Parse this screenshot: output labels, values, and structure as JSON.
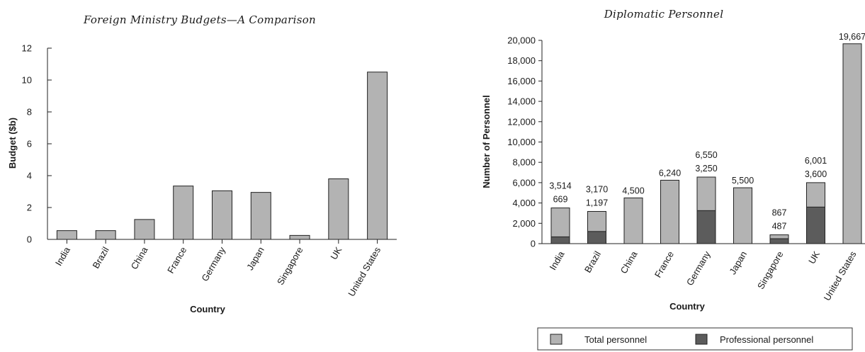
{
  "chart_data": [
    {
      "type": "bar",
      "title": "Foreign Ministry Budgets—A Comparison",
      "xlabel": "Country",
      "ylabel": "Budget ($b)",
      "ylim": [
        0,
        12
      ],
      "yticks": [
        "0",
        "2",
        "4",
        "6",
        "8",
        "10",
        "12"
      ],
      "categories": [
        "India",
        "Brazil",
        "China",
        "France",
        "Germany",
        "Japan",
        "Singapore",
        "UK",
        "United States"
      ],
      "values": [
        0.55,
        0.55,
        1.25,
        3.35,
        3.05,
        2.95,
        0.25,
        3.8,
        10.5
      ],
      "colors": {
        "bar": "#b3b3b3",
        "stroke": "#222222"
      }
    },
    {
      "type": "bar",
      "title": "Diplomatic Personnel",
      "xlabel": "Country",
      "ylabel": "Number of Personnel",
      "ylim": [
        0,
        20000
      ],
      "yticks": [
        "0",
        "2,000",
        "4,000",
        "6,000",
        "8,000",
        "10,000",
        "12,000",
        "14,000",
        "16,000",
        "18,000",
        "20,000"
      ],
      "categories": [
        "India",
        "Brazil",
        "China",
        "France",
        "Germany",
        "Japan",
        "Singapore",
        "UK",
        "United States"
      ],
      "series": [
        {
          "name": "Total personnel",
          "values": [
            3514,
            3170,
            4500,
            6240,
            6550,
            5500,
            867,
            6001,
            19667
          ],
          "labels": [
            "3,514",
            "3,170",
            "4,500",
            "6,240",
            "6,550",
            "5,500",
            "867",
            "6,001",
            "19,667"
          ]
        },
        {
          "name": "Professional personnel",
          "values": [
            669,
            1197,
            null,
            null,
            3250,
            null,
            487,
            3600,
            null
          ],
          "labels": [
            "669",
            "1,197",
            "",
            "",
            "3,250",
            "",
            "487",
            "3,600",
            ""
          ]
        }
      ],
      "legend": "bottom",
      "colors": {
        "total": "#b3b3b3",
        "professional": "#5c5c5c",
        "stroke": "#222222"
      }
    }
  ]
}
